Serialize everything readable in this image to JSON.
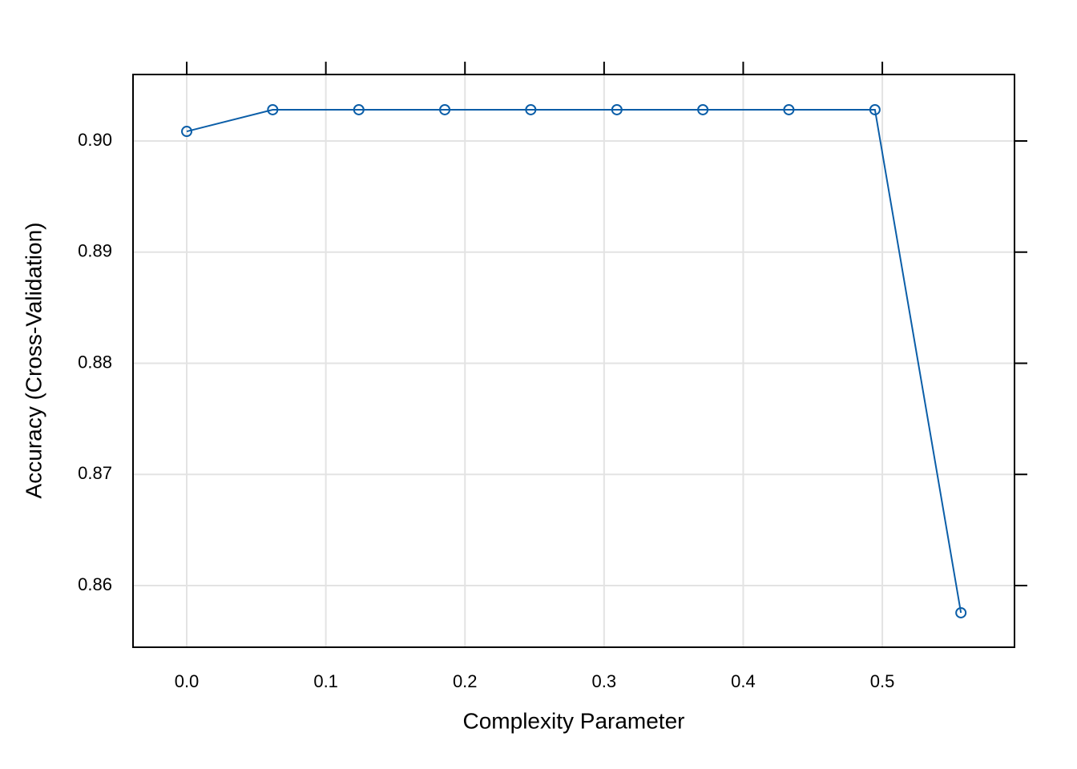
{
  "chart_data": {
    "type": "line",
    "x_label": "Complexity Parameter",
    "y_label": "Accuracy (Cross-Validation)",
    "x": [
      0,
      0.0618,
      0.1237,
      0.1855,
      0.2473,
      0.3092,
      0.371,
      0.4328,
      0.4947,
      0.5565
    ],
    "series": [
      {
        "name": "Accuracy",
        "color": "#0b5ea8",
        "values": [
          0.90086,
          0.90281,
          0.90281,
          0.90281,
          0.90281,
          0.90281,
          0.90281,
          0.90281,
          0.90281,
          0.85755
        ]
      }
    ],
    "xlim": [
      -0.0386,
      0.595
    ],
    "ylim": [
      0.85445,
      0.90598
    ],
    "xticks": [
      {
        "value": 0,
        "label": "0.0"
      },
      0.1,
      0.2,
      0.3,
      0.4,
      0.5
    ],
    "yticks": [
      0.86,
      0.87,
      0.88,
      0.89,
      {
        "value": 0.9,
        "label": "0.90"
      }
    ],
    "grid": true
  }
}
